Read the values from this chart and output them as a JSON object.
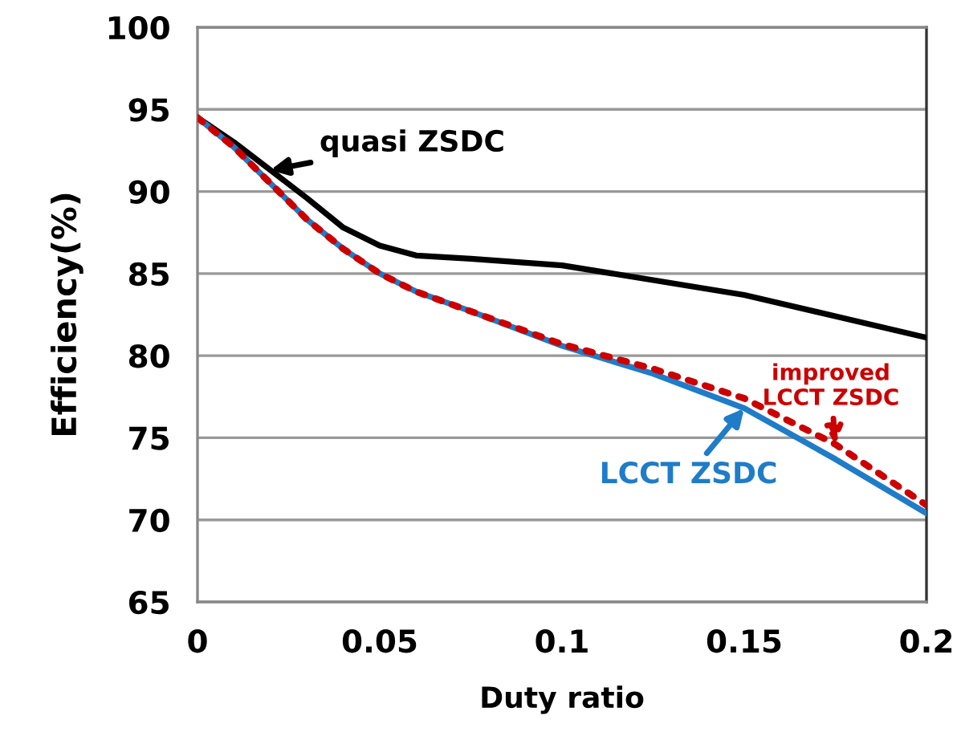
{
  "chart_data": {
    "type": "line",
    "xlabel": "Duty ratio",
    "ylabel": "Efficiency(%)",
    "x": [
      0,
      0.01,
      0.02,
      0.03,
      0.04,
      0.05,
      0.06,
      0.075,
      0.1,
      0.125,
      0.15,
      0.175,
      0.2
    ],
    "series": [
      {
        "name": "quasi ZSDC",
        "color": "#000000",
        "line_style": "solid",
        "values": [
          94.5,
          93,
          91.3,
          89.6,
          87.8,
          86.7,
          86.1,
          85.9,
          85.5,
          84.6,
          83.7,
          82.4,
          81.1
        ]
      },
      {
        "name": "LCCT ZSDC",
        "color": "#1f7cc8",
        "line_style": "solid",
        "values": [
          94.5,
          92.7,
          90.5,
          88.3,
          86.5,
          85,
          83.9,
          82.7,
          80.6,
          78.9,
          76.8,
          73.7,
          70.4
        ]
      },
      {
        "name": "improved\nLCCT ZSDC",
        "color": "#cc0000",
        "line_style": "dotted",
        "values": [
          94.5,
          92.7,
          90.5,
          88.3,
          86.5,
          85,
          83.9,
          82.7,
          80.7,
          79.2,
          77.4,
          74.6,
          70.9
        ]
      }
    ],
    "xlim": [
      0,
      0.2
    ],
    "xticks": [
      0,
      0.05,
      0.1,
      0.15,
      0.2
    ],
    "ylim": [
      65,
      100
    ],
    "yticks": [
      65,
      70,
      75,
      80,
      85,
      90,
      95,
      100
    ],
    "grid": "y",
    "marker": "none"
  }
}
